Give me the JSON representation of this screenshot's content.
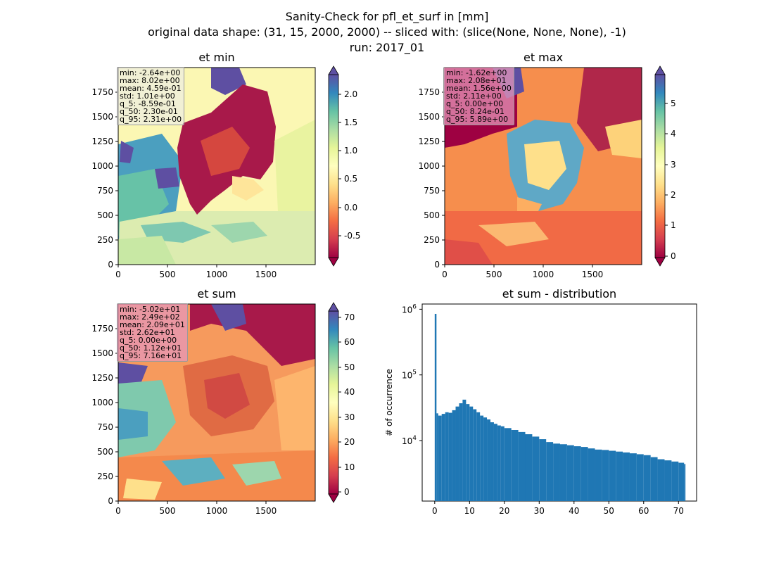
{
  "figure": {
    "title_line1": "Sanity-Check for pfl_et_surf in [mm]",
    "title_line2": "original data shape: (31, 15, 2000, 2000) -- sliced with: (slice(None, None, None), -1)",
    "title_line3": "run: 2017_01"
  },
  "panels": {
    "et_min": {
      "title": "et min",
      "stats": [
        "min: -2.64e+00",
        "max: 8.02e+00",
        "mean: 4.59e-01",
        "std: 1.01e+00",
        "q_5: -8.59e-01",
        "q_50: 2.30e-01",
        "q_95: 2.31e+00"
      ],
      "box_color": "rgba(235,235,235,0.6)",
      "colorbar": {
        "ticks": [
          "2.0",
          "1.5",
          "1.0",
          "0.5",
          "0.0",
          "-0.5"
        ],
        "vmin": -0.859,
        "vmax": 2.31
      }
    },
    "et_max": {
      "title": "et max",
      "stats": [
        "min: -1.62e+00",
        "max: 2.08e+01",
        "mean: 1.56e+00",
        "std: 2.11e+00",
        "q_5: 0.00e+00",
        "q_50: 8.24e-01",
        "q_95: 5.89e+00"
      ],
      "box_color": "rgba(230,150,185,0.75)",
      "colorbar": {
        "ticks": [
          "5",
          "4",
          "3",
          "2",
          "1",
          "0"
        ],
        "vmin": 0.0,
        "vmax": 5.89
      }
    },
    "et_sum": {
      "title": "et sum",
      "stats": [
        "min: -5.02e+01",
        "max: 2.49e+02",
        "mean: 2.09e+01",
        "std: 2.62e+01",
        "q_5: 0.00e+00",
        "q_50: 1.12e+01",
        "q_95: 7.16e+01"
      ],
      "box_color": "rgba(230,150,185,0.75)",
      "colorbar": {
        "ticks": [
          "70",
          "60",
          "50",
          "40",
          "30",
          "20",
          "10",
          "0"
        ],
        "vmin": 0.0,
        "vmax": 71.6
      }
    },
    "map_axes": {
      "x_ticks": [
        "0",
        "500",
        "1000",
        "1500"
      ],
      "y_ticks": [
        "1750",
        "1500",
        "1250",
        "1000",
        "750",
        "500",
        "250",
        "0"
      ],
      "range": [
        0,
        2000
      ]
    }
  },
  "chart_data": [
    {
      "type": "heatmap",
      "title": "et min",
      "xlim": [
        0,
        2000
      ],
      "ylim": [
        0,
        2000
      ],
      "colormap": "Spectral",
      "colorbar_range": [
        -0.859,
        2.31
      ]
    },
    {
      "type": "heatmap",
      "title": "et max",
      "xlim": [
        0,
        2000
      ],
      "ylim": [
        0,
        2000
      ],
      "colormap": "Spectral",
      "colorbar_range": [
        0.0,
        5.89
      ]
    },
    {
      "type": "heatmap",
      "title": "et sum",
      "xlim": [
        0,
        2000
      ],
      "ylim": [
        0,
        2000
      ],
      "colormap": "Spectral",
      "colorbar_range": [
        0.0,
        71.6
      ]
    },
    {
      "type": "bar",
      "title": "et sum - distribution",
      "ylabel": "# of occurrence",
      "xlabel": "",
      "yscale": "log",
      "xlim": [
        -3.6,
        75.2
      ],
      "ylim": [
        1200,
        1200000
      ],
      "x_ticks": [
        "0",
        "10",
        "20",
        "30",
        "40",
        "50",
        "60",
        "70"
      ],
      "y_ticks": [
        "10^4",
        "10^5",
        "10^6"
      ],
      "color": "#1f77b4",
      "bins": [
        {
          "x": 0.0,
          "y": 850000
        },
        {
          "x": 0.5,
          "y": 26000
        },
        {
          "x": 1.0,
          "y": 24000
        },
        {
          "x": 2.0,
          "y": 25500
        },
        {
          "x": 3.0,
          "y": 27000
        },
        {
          "x": 4.0,
          "y": 26500
        },
        {
          "x": 5.0,
          "y": 29000
        },
        {
          "x": 6.0,
          "y": 33000
        },
        {
          "x": 7.0,
          "y": 37000
        },
        {
          "x": 8.0,
          "y": 42000
        },
        {
          "x": 9.0,
          "y": 36000
        },
        {
          "x": 10.0,
          "y": 33000
        },
        {
          "x": 11.0,
          "y": 30000
        },
        {
          "x": 12.0,
          "y": 27000
        },
        {
          "x": 13.0,
          "y": 24000
        },
        {
          "x": 14.0,
          "y": 22500
        },
        {
          "x": 15.0,
          "y": 21000
        },
        {
          "x": 16.0,
          "y": 19000
        },
        {
          "x": 17.0,
          "y": 18000
        },
        {
          "x": 18.0,
          "y": 17000
        },
        {
          "x": 19.0,
          "y": 16500
        },
        {
          "x": 20.0,
          "y": 15500
        },
        {
          "x": 22.0,
          "y": 14500
        },
        {
          "x": 24.0,
          "y": 13500
        },
        {
          "x": 26.0,
          "y": 12500
        },
        {
          "x": 28.0,
          "y": 11500
        },
        {
          "x": 30.0,
          "y": 10500
        },
        {
          "x": 32.0,
          "y": 9500
        },
        {
          "x": 34.0,
          "y": 9000
        },
        {
          "x": 36.0,
          "y": 8800
        },
        {
          "x": 38.0,
          "y": 8500
        },
        {
          "x": 40.0,
          "y": 8200
        },
        {
          "x": 42.0,
          "y": 8000
        },
        {
          "x": 44.0,
          "y": 7600
        },
        {
          "x": 46.0,
          "y": 7300
        },
        {
          "x": 48.0,
          "y": 7200
        },
        {
          "x": 50.0,
          "y": 7000
        },
        {
          "x": 52.0,
          "y": 6800
        },
        {
          "x": 54.0,
          "y": 6600
        },
        {
          "x": 56.0,
          "y": 6400
        },
        {
          "x": 58.0,
          "y": 6200
        },
        {
          "x": 60.0,
          "y": 6000
        },
        {
          "x": 62.0,
          "y": 5600
        },
        {
          "x": 64.0,
          "y": 5200
        },
        {
          "x": 66.0,
          "y": 5000
        },
        {
          "x": 68.0,
          "y": 4800
        },
        {
          "x": 70.0,
          "y": 4600
        },
        {
          "x": 71.6,
          "y": 4400
        }
      ]
    }
  ]
}
